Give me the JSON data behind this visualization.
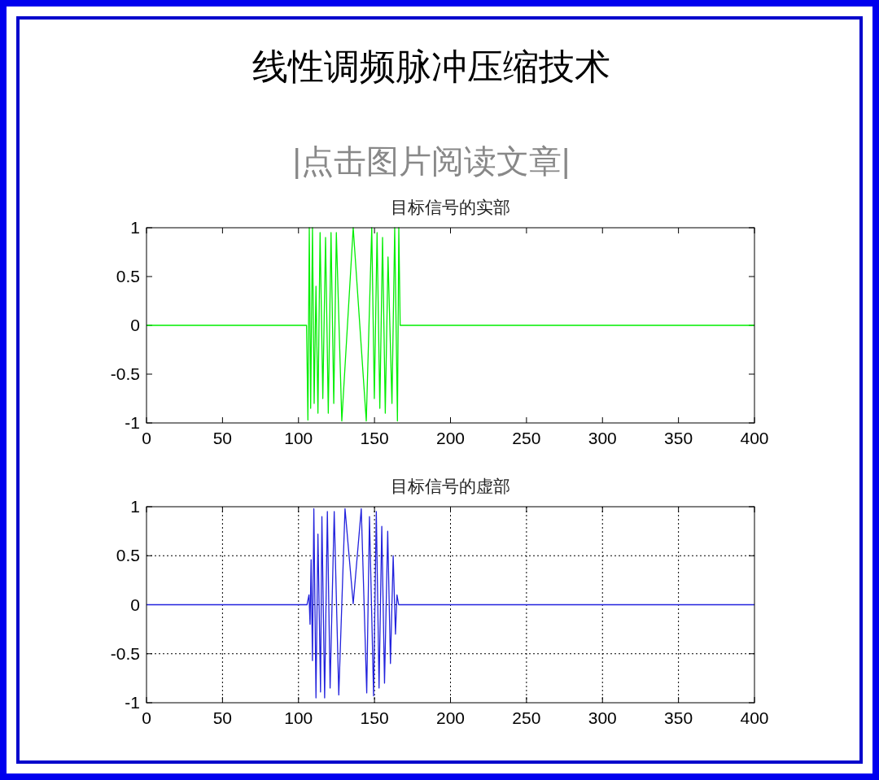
{
  "chart_data": [
    {
      "type": "line",
      "title": "目标信号的实部",
      "annotations": [
        "线性调频脉冲压缩技术",
        "|点击图片阅读文章|"
      ],
      "grid": false,
      "xlim": [
        0,
        400
      ],
      "xticks": [
        0,
        50,
        100,
        150,
        200,
        250,
        300,
        350,
        400
      ],
      "ylim": [
        -1,
        1
      ],
      "yticks": [
        -1,
        -0.5,
        0,
        0.5,
        1
      ],
      "line_style": "solid",
      "marker": "none",
      "series": [
        {
          "color": "#00ee00",
          "x": [
            0,
            105.3,
            106.2,
            107.1,
            108,
            109.2,
            110.3,
            111.5,
            112.8,
            114.2,
            116,
            117.8,
            119.6,
            121.4,
            123.2,
            124.9,
            128.5,
            136,
            144.6,
            148.2,
            149.9,
            151.7,
            153.5,
            155.3,
            157.1,
            158.9,
            161.5,
            163.3,
            165.1,
            166,
            166.9,
            400
          ],
          "values": [
            0,
            0,
            -0.97,
            1,
            -0.85,
            1,
            -0.8,
            0.4,
            -0.9,
            0.95,
            -0.75,
            0.9,
            -0.9,
            0.95,
            -0.8,
            0.95,
            -0.98,
            1,
            -0.98,
            1,
            -0.75,
            0.95,
            -0.85,
            0.9,
            -0.9,
            0.7,
            -0.8,
            1,
            -0.98,
            1,
            0,
            0
          ]
        }
      ]
    },
    {
      "type": "line",
      "title": "目标信号的虚部",
      "grid": true,
      "xlim": [
        0,
        400
      ],
      "xticks": [
        0,
        50,
        100,
        150,
        200,
        250,
        300,
        350,
        400
      ],
      "ylim": [
        -1,
        1
      ],
      "yticks": [
        -1,
        -0.5,
        0,
        0.5,
        1
      ],
      "line_style": "solid",
      "marker": "none",
      "series": [
        {
          "color": "#2222dd",
          "x": [
            0,
            105.6,
            106.9,
            107.6,
            108.3,
            109.2,
            110.1,
            111.5,
            112.8,
            114.5,
            115.4,
            117.2,
            119,
            120.8,
            123.5,
            126.5,
            130.6,
            136,
            141.3,
            144.9,
            146.7,
            149.4,
            151.2,
            153,
            154.8,
            156.6,
            158.7,
            160.5,
            162.3,
            163.8,
            164.8,
            165.9,
            400
          ],
          "values": [
            0,
            0,
            0.1,
            -0.2,
            0.46,
            -0.57,
            0.98,
            -0.95,
            0.72,
            -0.89,
            0.9,
            -0.95,
            0.95,
            -0.85,
            0.95,
            -0.92,
            0.98,
            0.01,
            0.98,
            -0.9,
            0.9,
            -0.93,
            0.95,
            -0.85,
            0.8,
            -0.8,
            0.75,
            -0.6,
            0.5,
            -0.3,
            0.1,
            0,
            0
          ]
        }
      ]
    }
  ]
}
